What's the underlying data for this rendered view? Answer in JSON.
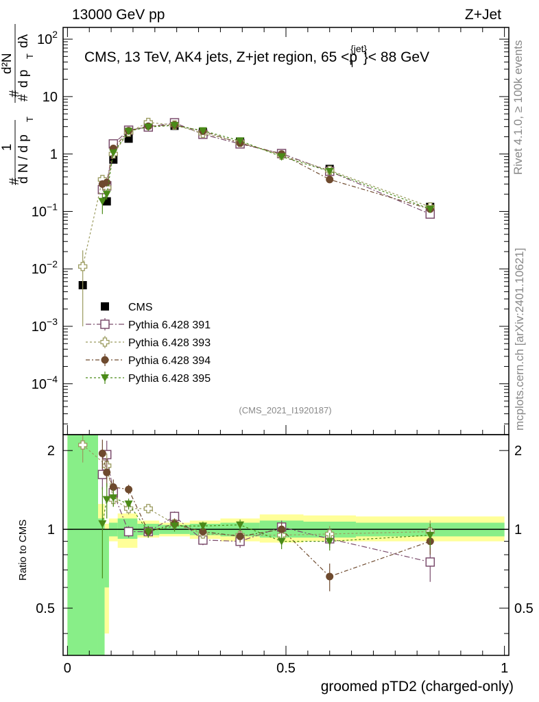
{
  "header": {
    "left_title": "13000 GeV pp",
    "right_title": "Z+Jet",
    "plot_title": "CMS, 13 TeV, AK4 jets, Z+jet region, 65 <p",
    "plot_title_sup": "{jet}",
    "plot_title_sub": "T",
    "plot_title_end": "}< 88 GeV",
    "watermark": "(CMS_2021_I1920187)"
  },
  "side_labels": {
    "rivet": "Rivet 4.1.0, ≥ 100k events",
    "mcplots": "mcplots.cern.ch [arXiv:2401.10621]"
  },
  "axes": {
    "ylabel_top_num": "1",
    "ylabel_top_den": "d N / d p",
    "ylabel_hash": "#",
    "ylabel_main_num": "d²N",
    "ylabel_main_den": "d p",
    "ylabel_dl": "dλ",
    "ylabel_T": "T",
    "ratio_ylabel": "Ratio to CMS",
    "xlabel": "groomed pTD2 (charged-only)",
    "main_ticks": [
      {
        "v": 100,
        "mant": "10",
        "exp": "2"
      },
      {
        "v": 10,
        "mant": "10",
        "exp": ""
      },
      {
        "v": 1,
        "mant": "1",
        "exp": ""
      },
      {
        "v": 0.1,
        "mant": "10",
        "exp": "−1"
      },
      {
        "v": 0.01,
        "mant": "10",
        "exp": "−2"
      },
      {
        "v": 0.001,
        "mant": "10",
        "exp": "−3"
      },
      {
        "v": 0.0001,
        "mant": "10",
        "exp": "−4"
      }
    ],
    "ratio_ticks": [
      {
        "v": 2,
        "label": "2"
      },
      {
        "v": 1,
        "label": "1"
      },
      {
        "v": 0.5,
        "label": "0.5"
      }
    ],
    "x_ticks": [
      {
        "v": 0,
        "label": "0"
      },
      {
        "v": 0.5,
        "label": "0.5"
      },
      {
        "v": 1,
        "label": "1"
      }
    ]
  },
  "chart_data": {
    "type": "scatter",
    "xlabel": "groomed pTD2 (charged-only)",
    "ylabel": "1/N dN/dλ",
    "xlim": [
      -0.01,
      1.01
    ],
    "ylim": [
      1.3e-05,
      160
    ],
    "yscale": "log",
    "ratio_ylim": [
      0.33,
      2.3
    ],
    "ratio_yscale": "log",
    "legend_position": "middle-left",
    "bins": [
      0,
      0.07,
      0.085,
      0.095,
      0.115,
      0.16,
      0.21,
      0.28,
      0.35,
      0.44,
      0.54,
      0.66,
      1.0
    ],
    "x": [
      0.035,
      0.08,
      0.09,
      0.105,
      0.14,
      0.185,
      0.245,
      0.31,
      0.395,
      0.49,
      0.6,
      0.83
    ],
    "bands": {
      "outer_color": "#ffff99",
      "inner_color": "#88ee88",
      "outer": [
        [
          0.33,
          2.3
        ],
        [
          0.33,
          1.25
        ],
        [
          0.4,
          1.05
        ],
        [
          0.9,
          1.1
        ],
        [
          0.85,
          1.15
        ],
        [
          0.93,
          1.08
        ],
        [
          0.94,
          1.06
        ],
        [
          0.92,
          1.08
        ],
        [
          0.9,
          1.1
        ],
        [
          0.89,
          1.14
        ],
        [
          0.9,
          1.13
        ],
        [
          0.9,
          1.12
        ]
      ],
      "inner": [
        [
          0.33,
          2.3
        ],
        [
          0.33,
          1.1
        ],
        [
          0.6,
          1.0
        ],
        [
          0.94,
          1.06
        ],
        [
          0.92,
          1.1
        ],
        [
          0.95,
          1.05
        ],
        [
          0.96,
          1.04
        ],
        [
          0.95,
          1.05
        ],
        [
          0.94,
          1.06
        ],
        [
          0.93,
          1.08
        ],
        [
          0.93,
          1.07
        ],
        [
          0.94,
          1.06
        ]
      ]
    },
    "series": [
      {
        "name": "CMS",
        "color": "#000000",
        "marker": "square-filled",
        "values": [
          0.0052,
          null,
          0.15,
          0.8,
          1.85,
          3.0,
          3.1,
          2.4,
          1.65,
          1.0,
          0.55,
          0.12
        ],
        "errors": [
          0.0007,
          null,
          0.02,
          0.05,
          0.08,
          0.1,
          0.1,
          0.08,
          0.06,
          0.04,
          0.03,
          0.01
        ],
        "ratio": null,
        "ratio_err": null
      },
      {
        "name": "Pythia 6.428 391",
        "color": "#7a4c6c",
        "marker": "square-open",
        "values": [
          null,
          0.24,
          0.28,
          1.5,
          2.6,
          2.95,
          3.5,
          2.2,
          1.5,
          1.02,
          0.5,
          0.09
        ],
        "errors": [
          null,
          0.04,
          0.04,
          0.1,
          0.1,
          0.1,
          0.12,
          0.1,
          0.07,
          0.05,
          0.04,
          0.012
        ],
        "ratio": [
          null,
          1.62,
          1.93,
          1.38,
          0.98,
          0.98,
          1.12,
          0.91,
          0.9,
          1.02,
          0.92,
          0.75
        ],
        "ratio_err": [
          null,
          0.2,
          0.25,
          0.1,
          0.05,
          0.05,
          0.05,
          0.04,
          0.05,
          0.06,
          0.07,
          0.12
        ]
      },
      {
        "name": "Pythia 6.428 393",
        "color": "#9a9a5e",
        "marker": "cross-open",
        "values": [
          0.011,
          0.36,
          0.26,
          1.0,
          2.4,
          3.55,
          3.2,
          2.3,
          1.6,
          0.95,
          0.52,
          0.12
        ],
        "errors": [
          0.01,
          0.05,
          0.04,
          0.08,
          0.1,
          0.12,
          0.12,
          0.1,
          0.07,
          0.05,
          0.04,
          0.015
        ],
        "ratio": [
          2.1,
          null,
          1.75,
          1.3,
          1.2,
          1.2,
          1.05,
          0.96,
          0.95,
          0.95,
          0.96,
          0.98
        ],
        "ratio_err": [
          0.3,
          null,
          0.2,
          0.08,
          0.06,
          0.05,
          0.05,
          0.04,
          0.05,
          0.06,
          0.07,
          0.1
        ]
      },
      {
        "name": "Pythia 6.428 394",
        "color": "#6e4a2e",
        "marker": "circle-filled",
        "values": [
          null,
          0.3,
          0.32,
          1.25,
          2.55,
          3.05,
          3.2,
          2.5,
          1.55,
          1.0,
          0.36,
          0.11
        ],
        "errors": [
          null,
          0.05,
          0.05,
          0.1,
          0.1,
          0.1,
          0.12,
          0.1,
          0.07,
          0.05,
          0.03,
          0.015
        ],
        "ratio": [
          null,
          1.95,
          1.65,
          1.45,
          1.42,
          0.98,
          1.05,
          0.98,
          0.94,
          1.0,
          0.66,
          0.9
        ],
        "ratio_err": [
          null,
          0.25,
          0.2,
          0.1,
          0.06,
          0.05,
          0.05,
          0.04,
          0.05,
          0.06,
          0.08,
          0.1
        ]
      },
      {
        "name": "Pythia 6.428 395",
        "color": "#4a8a18",
        "marker": "triangle-down-filled",
        "values": [
          null,
          0.15,
          0.2,
          1.05,
          2.5,
          2.95,
          3.15,
          2.55,
          1.7,
          0.9,
          0.5,
          0.11
        ],
        "errors": [
          null,
          0.06,
          0.04,
          0.08,
          0.1,
          0.1,
          0.12,
          0.1,
          0.07,
          0.05,
          0.04,
          0.015
        ],
        "ratio": [
          null,
          1.05,
          1.3,
          1.32,
          1.25,
          0.98,
          1.03,
          1.03,
          1.04,
          0.9,
          0.9,
          0.95
        ],
        "ratio_err": [
          null,
          0.4,
          0.2,
          0.1,
          0.06,
          0.05,
          0.05,
          0.04,
          0.05,
          0.06,
          0.07,
          0.1
        ]
      }
    ]
  }
}
